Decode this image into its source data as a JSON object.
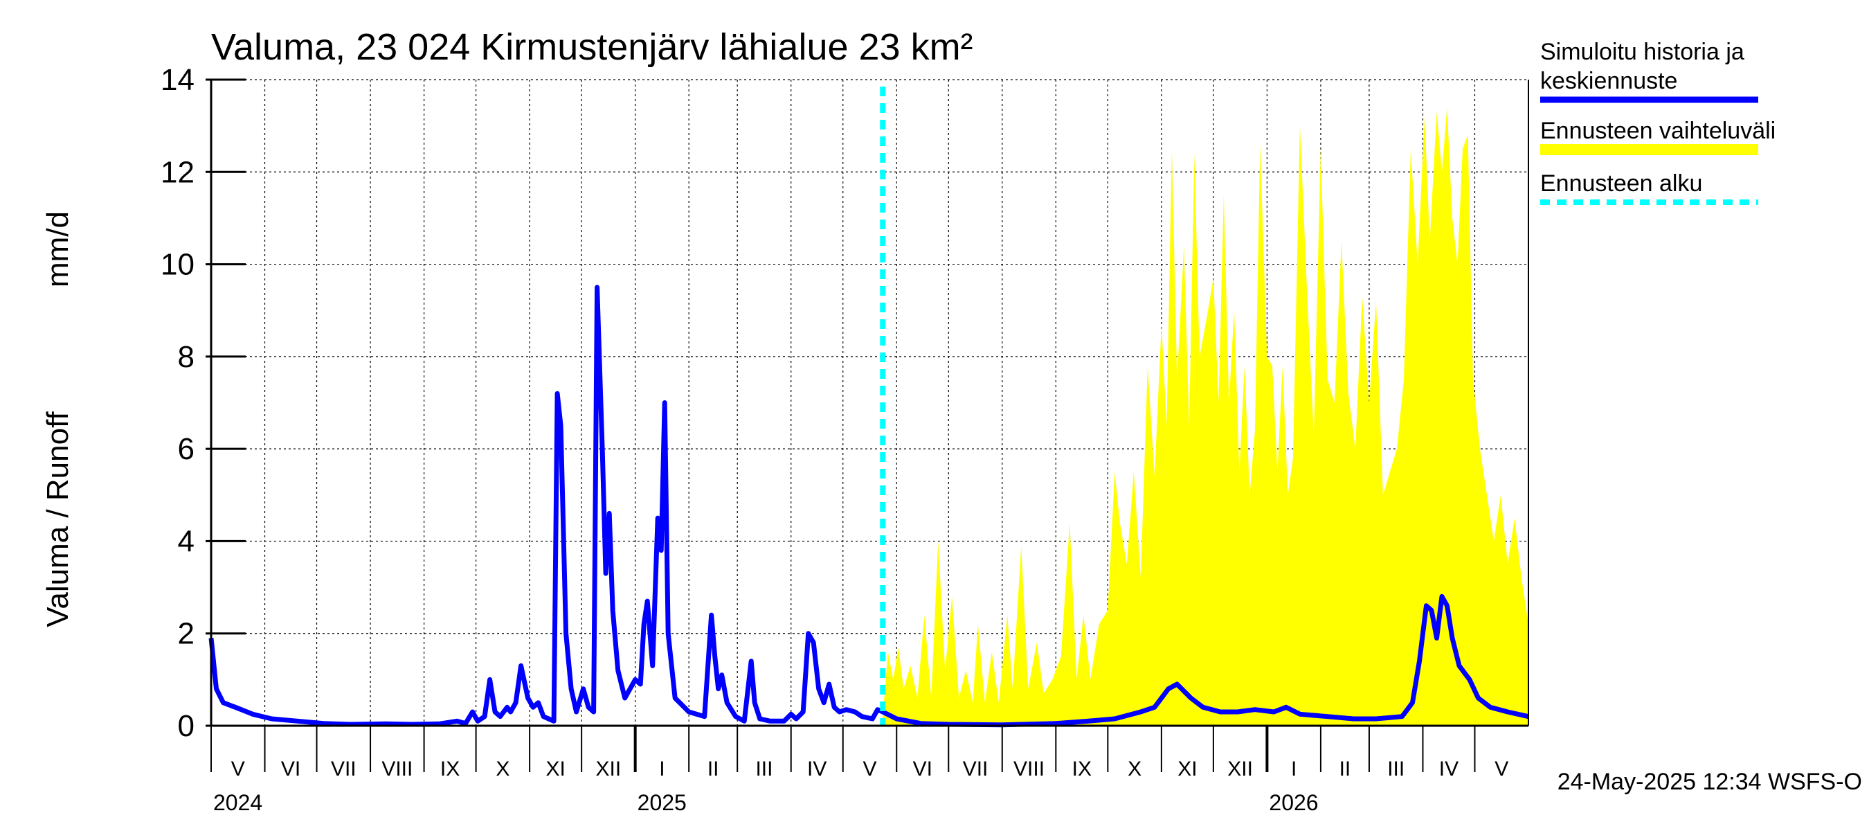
{
  "chart_data": {
    "type": "area",
    "title": "Valuma, 23 024 Kirmustenjärv lähialue 23 km²",
    "ylabel_fi": "Valuma / Runoff",
    "ylabel_unit": "mm/d",
    "ylim": [
      0,
      14
    ],
    "yticks": [
      0,
      2,
      4,
      6,
      8,
      10,
      12,
      14
    ],
    "x_start": "2024-05-01",
    "x_end": "2026-06-01",
    "forecast_start": "2025-05-24",
    "months": [
      {
        "label": "V",
        "start": "2024-05-01"
      },
      {
        "label": "VI",
        "start": "2024-06-01"
      },
      {
        "label": "VII",
        "start": "2024-07-01"
      },
      {
        "label": "VIII",
        "start": "2024-08-01"
      },
      {
        "label": "IX",
        "start": "2024-09-01"
      },
      {
        "label": "X",
        "start": "2024-10-01"
      },
      {
        "label": "XI",
        "start": "2024-11-01"
      },
      {
        "label": "XII",
        "start": "2024-12-01"
      },
      {
        "label": "I",
        "start": "2025-01-01"
      },
      {
        "label": "II",
        "start": "2025-02-01"
      },
      {
        "label": "III",
        "start": "2025-03-01"
      },
      {
        "label": "IV",
        "start": "2025-04-01"
      },
      {
        "label": "V",
        "start": "2025-05-01"
      },
      {
        "label": "VI",
        "start": "2025-06-01"
      },
      {
        "label": "VII",
        "start": "2025-07-01"
      },
      {
        "label": "VIII",
        "start": "2025-08-01"
      },
      {
        "label": "IX",
        "start": "2025-09-01"
      },
      {
        "label": "X",
        "start": "2025-10-01"
      },
      {
        "label": "XI",
        "start": "2025-11-01"
      },
      {
        "label": "XII",
        "start": "2025-12-01"
      },
      {
        "label": "I",
        "start": "2026-01-01"
      },
      {
        "label": "II",
        "start": "2026-02-01"
      },
      {
        "label": "III",
        "start": "2026-03-01"
      },
      {
        "label": "IV",
        "start": "2026-04-01"
      },
      {
        "label": "V",
        "start": "2026-05-01"
      }
    ],
    "years": [
      {
        "label": "2024",
        "date": "2024-05-01"
      },
      {
        "label": "2025",
        "date": "2025-01-01"
      },
      {
        "label": "2026",
        "date": "2026-01-01"
      }
    ],
    "series": [
      {
        "name": "Simuloitu historia ja keskiennuste",
        "color": "#0000ff",
        "points": [
          [
            "2024-05-01",
            1.9
          ],
          [
            "2024-05-04",
            0.8
          ],
          [
            "2024-05-08",
            0.5
          ],
          [
            "2024-05-15",
            0.4
          ],
          [
            "2024-05-25",
            0.25
          ],
          [
            "2024-06-05",
            0.15
          ],
          [
            "2024-06-20",
            0.1
          ],
          [
            "2024-07-05",
            0.05
          ],
          [
            "2024-07-20",
            0.03
          ],
          [
            "2024-08-10",
            0.04
          ],
          [
            "2024-08-25",
            0.03
          ],
          [
            "2024-09-10",
            0.04
          ],
          [
            "2024-09-20",
            0.1
          ],
          [
            "2024-09-25",
            0.05
          ],
          [
            "2024-09-29",
            0.3
          ],
          [
            "2024-10-02",
            0.1
          ],
          [
            "2024-10-06",
            0.2
          ],
          [
            "2024-10-09",
            1.0
          ],
          [
            "2024-10-12",
            0.3
          ],
          [
            "2024-10-15",
            0.2
          ],
          [
            "2024-10-19",
            0.4
          ],
          [
            "2024-10-21",
            0.3
          ],
          [
            "2024-10-24",
            0.5
          ],
          [
            "2024-10-27",
            1.3
          ],
          [
            "2024-10-31",
            0.6
          ],
          [
            "2024-11-03",
            0.4
          ],
          [
            "2024-11-06",
            0.5
          ],
          [
            "2024-11-09",
            0.2
          ],
          [
            "2024-11-12",
            0.15
          ],
          [
            "2024-11-15",
            0.1
          ],
          [
            "2024-11-17",
            7.2
          ],
          [
            "2024-11-19",
            6.5
          ],
          [
            "2024-11-22",
            2.0
          ],
          [
            "2024-11-25",
            0.8
          ],
          [
            "2024-11-28",
            0.3
          ],
          [
            "2024-12-02",
            0.8
          ],
          [
            "2024-12-05",
            0.4
          ],
          [
            "2024-12-08",
            0.3
          ],
          [
            "2024-12-10",
            9.5
          ],
          [
            "2024-12-13",
            6.0
          ],
          [
            "2024-12-15",
            3.3
          ],
          [
            "2024-12-17",
            4.6
          ],
          [
            "2024-12-19",
            2.5
          ],
          [
            "2024-12-22",
            1.2
          ],
          [
            "2024-12-26",
            0.6
          ],
          [
            "2024-12-29",
            0.8
          ],
          [
            "2025-01-01",
            1.0
          ],
          [
            "2025-01-04",
            0.9
          ],
          [
            "2025-01-06",
            2.2
          ],
          [
            "2025-01-08",
            2.7
          ],
          [
            "2025-01-11",
            1.3
          ],
          [
            "2025-01-14",
            4.5
          ],
          [
            "2025-01-16",
            3.8
          ],
          [
            "2025-01-18",
            7.0
          ],
          [
            "2025-01-20",
            2.0
          ],
          [
            "2025-01-24",
            0.6
          ],
          [
            "2025-02-01",
            0.3
          ],
          [
            "2025-02-10",
            0.2
          ],
          [
            "2025-02-14",
            2.4
          ],
          [
            "2025-02-16",
            1.5
          ],
          [
            "2025-02-18",
            0.8
          ],
          [
            "2025-02-20",
            1.1
          ],
          [
            "2025-02-23",
            0.5
          ],
          [
            "2025-02-28",
            0.2
          ],
          [
            "2025-03-05",
            0.1
          ],
          [
            "2025-03-09",
            1.4
          ],
          [
            "2025-03-11",
            0.5
          ],
          [
            "2025-03-14",
            0.15
          ],
          [
            "2025-03-20",
            0.1
          ],
          [
            "2025-03-28",
            0.1
          ],
          [
            "2025-04-01",
            0.25
          ],
          [
            "2025-04-04",
            0.15
          ],
          [
            "2025-04-08",
            0.3
          ],
          [
            "2025-04-11",
            2.0
          ],
          [
            "2025-04-14",
            1.8
          ],
          [
            "2025-04-17",
            0.8
          ],
          [
            "2025-04-20",
            0.5
          ],
          [
            "2025-04-23",
            0.9
          ],
          [
            "2025-04-26",
            0.4
          ],
          [
            "2025-04-29",
            0.3
          ],
          [
            "2025-05-03",
            0.35
          ],
          [
            "2025-05-08",
            0.3
          ],
          [
            "2025-05-12",
            0.2
          ],
          [
            "2025-05-18",
            0.15
          ],
          [
            "2025-05-21",
            0.35
          ],
          [
            "2025-05-24",
            0.3
          ],
          [
            "2025-06-01",
            0.15
          ],
          [
            "2025-06-15",
            0.05
          ],
          [
            "2025-07-01",
            0.03
          ],
          [
            "2025-08-01",
            0.02
          ],
          [
            "2025-09-01",
            0.05
          ],
          [
            "2025-09-20",
            0.1
          ],
          [
            "2025-10-05",
            0.15
          ],
          [
            "2025-10-20",
            0.3
          ],
          [
            "2025-10-28",
            0.4
          ],
          [
            "2025-11-05",
            0.8
          ],
          [
            "2025-11-10",
            0.9
          ],
          [
            "2025-11-18",
            0.6
          ],
          [
            "2025-11-25",
            0.4
          ],
          [
            "2025-12-05",
            0.3
          ],
          [
            "2025-12-15",
            0.3
          ],
          [
            "2025-12-25",
            0.35
          ],
          [
            "2026-01-05",
            0.3
          ],
          [
            "2026-01-12",
            0.4
          ],
          [
            "2026-01-20",
            0.25
          ],
          [
            "2026-02-05",
            0.2
          ],
          [
            "2026-02-20",
            0.15
          ],
          [
            "2026-03-05",
            0.15
          ],
          [
            "2026-03-20",
            0.2
          ],
          [
            "2026-03-26",
            0.5
          ],
          [
            "2026-03-30",
            1.4
          ],
          [
            "2026-04-03",
            2.6
          ],
          [
            "2026-04-06",
            2.5
          ],
          [
            "2026-04-09",
            1.9
          ],
          [
            "2026-04-12",
            2.8
          ],
          [
            "2026-04-15",
            2.6
          ],
          [
            "2026-04-18",
            1.9
          ],
          [
            "2026-04-22",
            1.3
          ],
          [
            "2026-04-28",
            1.0
          ],
          [
            "2026-05-03",
            0.6
          ],
          [
            "2026-05-10",
            0.4
          ],
          [
            "2026-05-20",
            0.3
          ],
          [
            "2026-06-01",
            0.2
          ]
        ]
      },
      {
        "name": "Ennusteen vaihteluväli",
        "color": "#ffff00",
        "points": [
          [
            "2025-05-24",
            0.2
          ],
          [
            "2025-05-27",
            1.6
          ],
          [
            "2025-05-30",
            1.0
          ],
          [
            "2025-06-02",
            1.7
          ],
          [
            "2025-06-05",
            0.8
          ],
          [
            "2025-06-09",
            1.3
          ],
          [
            "2025-06-13",
            0.6
          ],
          [
            "2025-06-17",
            2.4
          ],
          [
            "2025-06-21",
            0.6
          ],
          [
            "2025-06-25",
            4.0
          ],
          [
            "2025-06-29",
            1.2
          ],
          [
            "2025-07-03",
            2.8
          ],
          [
            "2025-07-07",
            0.6
          ],
          [
            "2025-07-11",
            1.2
          ],
          [
            "2025-07-15",
            0.5
          ],
          [
            "2025-07-18",
            2.2
          ],
          [
            "2025-07-22",
            0.5
          ],
          [
            "2025-07-26",
            1.6
          ],
          [
            "2025-07-30",
            0.5
          ],
          [
            "2025-08-04",
            2.4
          ],
          [
            "2025-08-07",
            0.8
          ],
          [
            "2025-08-12",
            3.9
          ],
          [
            "2025-08-16",
            0.8
          ],
          [
            "2025-08-21",
            1.8
          ],
          [
            "2025-08-25",
            0.7
          ],
          [
            "2025-08-30",
            1.0
          ],
          [
            "2025-09-04",
            1.5
          ],
          [
            "2025-09-09",
            4.4
          ],
          [
            "2025-09-13",
            1.0
          ],
          [
            "2025-09-17",
            2.4
          ],
          [
            "2025-09-21",
            1.0
          ],
          [
            "2025-09-26",
            2.2
          ],
          [
            "2025-10-01",
            2.5
          ],
          [
            "2025-10-05",
            5.5
          ],
          [
            "2025-10-08",
            4.4
          ],
          [
            "2025-10-12",
            3.5
          ],
          [
            "2025-10-16",
            5.5
          ],
          [
            "2025-10-20",
            3.2
          ],
          [
            "2025-10-24",
            7.8
          ],
          [
            "2025-10-28",
            5.4
          ],
          [
            "2025-11-01",
            8.7
          ],
          [
            "2025-11-04",
            6.5
          ],
          [
            "2025-11-07",
            12.5
          ],
          [
            "2025-11-10",
            7.5
          ],
          [
            "2025-11-14",
            10.4
          ],
          [
            "2025-11-17",
            6.5
          ],
          [
            "2025-11-20",
            12.4
          ],
          [
            "2025-11-23",
            8.0
          ],
          [
            "2025-11-27",
            8.8
          ],
          [
            "2025-12-01",
            9.7
          ],
          [
            "2025-12-04",
            7.0
          ],
          [
            "2025-12-07",
            11.5
          ],
          [
            "2025-12-10",
            7.0
          ],
          [
            "2025-12-13",
            9.0
          ],
          [
            "2025-12-16",
            5.5
          ],
          [
            "2025-12-19",
            7.8
          ],
          [
            "2025-12-22",
            5.0
          ],
          [
            "2025-12-25",
            6.4
          ],
          [
            "2025-12-28",
            12.6
          ],
          [
            "2026-01-01",
            8.0
          ],
          [
            "2026-01-04",
            7.8
          ],
          [
            "2026-01-07",
            5.5
          ],
          [
            "2026-01-10",
            7.8
          ],
          [
            "2026-01-13",
            5.0
          ],
          [
            "2026-01-16",
            5.8
          ],
          [
            "2026-01-20",
            13.0
          ],
          [
            "2026-01-24",
            9.5
          ],
          [
            "2026-01-28",
            6.3
          ],
          [
            "2026-02-01",
            12.5
          ],
          [
            "2026-02-05",
            7.5
          ],
          [
            "2026-02-09",
            7.0
          ],
          [
            "2026-02-13",
            10.5
          ],
          [
            "2026-02-17",
            7.2
          ],
          [
            "2026-02-21",
            6.0
          ],
          [
            "2026-02-25",
            9.3
          ],
          [
            "2026-03-01",
            7.0
          ],
          [
            "2026-03-05",
            9.2
          ],
          [
            "2026-03-09",
            5.0
          ],
          [
            "2026-03-13",
            5.5
          ],
          [
            "2026-03-17",
            6.0
          ],
          [
            "2026-03-21",
            7.5
          ],
          [
            "2026-03-25",
            12.5
          ],
          [
            "2026-03-29",
            10.0
          ],
          [
            "2026-04-02",
            13.2
          ],
          [
            "2026-04-05",
            10.5
          ],
          [
            "2026-04-09",
            13.3
          ],
          [
            "2026-04-12",
            12.0
          ],
          [
            "2026-04-15",
            13.4
          ],
          [
            "2026-04-18",
            11.0
          ],
          [
            "2026-04-21",
            10.0
          ],
          [
            "2026-04-24",
            12.5
          ],
          [
            "2026-04-27",
            12.8
          ],
          [
            "2026-04-30",
            7.5
          ],
          [
            "2026-05-04",
            6.0
          ],
          [
            "2026-05-08",
            5.0
          ],
          [
            "2026-05-12",
            4.0
          ],
          [
            "2026-05-16",
            5.0
          ],
          [
            "2026-05-20",
            3.5
          ],
          [
            "2026-05-24",
            4.5
          ],
          [
            "2026-05-28",
            3.2
          ],
          [
            "2026-06-01",
            2.2
          ]
        ]
      },
      {
        "name": "Ennusteen alku",
        "color": "#00ffff",
        "date": "2025-05-24"
      }
    ],
    "legend_position": "right"
  },
  "legend": {
    "items": [
      {
        "line1": "Simuloitu historia ja",
        "line2": "keskiennuste",
        "color": "#0000ff",
        "style": "solid"
      },
      {
        "line1": "Ennusteen vaihteluväli",
        "color": "#ffff00",
        "style": "solid"
      },
      {
        "line1": "Ennusteen alku",
        "color": "#00ffff",
        "style": "dashed"
      }
    ]
  },
  "footer": "24-May-2025 12:34 WSFS-O"
}
